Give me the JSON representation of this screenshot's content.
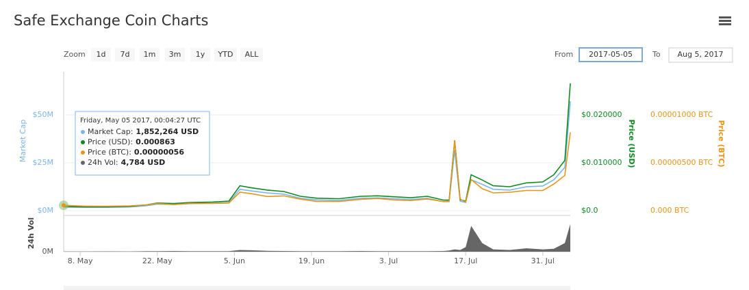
{
  "chart_data": {
    "type": "line",
    "title": "Safe Exchange Coin Charts",
    "range_selector": {
      "zoom_label": "Zoom",
      "buttons": [
        "1d",
        "7d",
        "1m",
        "3m",
        "1y",
        "YTD",
        "ALL"
      ],
      "from_label": "From",
      "from": "2017-05-05",
      "to_label": "To",
      "to": "Aug 5, 2017"
    },
    "tooltip": {
      "header": "Friday, May 05 2017, 00:04:27 UTC",
      "rows": [
        {
          "label": "Market Cap:",
          "value": "1,852,264 USD"
        },
        {
          "label": "Price (USD):",
          "value": "0.000863"
        },
        {
          "label": "Price (BTC):",
          "value": "0.00000056"
        },
        {
          "label": "24h Vol:",
          "value": "4,784 USD"
        }
      ]
    },
    "x": [
      "2017-05-05",
      "2017-05-09",
      "2017-05-13",
      "2017-05-17",
      "2017-05-20",
      "2017-05-22",
      "2017-05-25",
      "2017-05-28",
      "2017-06-01",
      "2017-06-04",
      "2017-06-06",
      "2017-06-08",
      "2017-06-11",
      "2017-06-14",
      "2017-06-17",
      "2017-06-20",
      "2017-06-24",
      "2017-06-28",
      "2017-07-01",
      "2017-07-04",
      "2017-07-07",
      "2017-07-10",
      "2017-07-13",
      "2017-07-14",
      "2017-07-15",
      "2017-07-16",
      "2017-07-17",
      "2017-07-18",
      "2017-07-20",
      "2017-07-22",
      "2017-07-25",
      "2017-07-28",
      "2017-07-31",
      "2017-08-02",
      "2017-08-04",
      "2017-08-05"
    ],
    "xlim": [
      "2017-05-05",
      "2017-08-05"
    ],
    "xticks": [
      {
        "value": "2017-05-08",
        "label": "8. May"
      },
      {
        "value": "2017-05-22",
        "label": "22. May"
      },
      {
        "value": "2017-06-05",
        "label": "5. Jun"
      },
      {
        "value": "2017-06-19",
        "label": "19. Jun"
      },
      {
        "value": "2017-07-03",
        "label": "3. Jul"
      },
      {
        "value": "2017-07-17",
        "label": "17. Jul"
      },
      {
        "value": "2017-07-31",
        "label": "31. Jul"
      }
    ],
    "series": [
      {
        "name": "Market Cap",
        "color": "#7cb5ec",
        "axis": "y",
        "values": [
          1852264,
          1720000,
          1720000,
          1935000,
          2580000,
          3440000,
          3225000,
          3655000,
          3870000,
          4300000,
          11180000,
          10320000,
          9245000,
          8600000,
          6450000,
          5590000,
          5375000,
          6450000,
          6665000,
          6235000,
          5805000,
          6450000,
          4730000,
          4730000,
          31605000,
          4945000,
          4300000,
          16125000,
          13760000,
          11180000,
          10750000,
          12470000,
          12900000,
          16125000,
          22575000,
          57190000
        ]
      },
      {
        "name": "Price (USD)",
        "color": "#0d8a1f",
        "axis": "y2",
        "values": [
          0.000863,
          0.0008,
          0.0008,
          0.0009,
          0.0012,
          0.0016,
          0.0015,
          0.0017,
          0.0018,
          0.002,
          0.0052,
          0.0048,
          0.0043,
          0.004,
          0.003,
          0.0026,
          0.0025,
          0.003,
          0.0031,
          0.0029,
          0.0027,
          0.003,
          0.0022,
          0.0022,
          0.0147,
          0.0023,
          0.002,
          0.0075,
          0.0064,
          0.0052,
          0.005,
          0.0058,
          0.006,
          0.0075,
          0.0105,
          0.0266
        ]
      },
      {
        "name": "Price (BTC)",
        "color": "#e69519",
        "axis": "y3",
        "values": [
          5.6e-07,
          4.7e-07,
          4.6e-07,
          5e-07,
          6e-07,
          7.6e-07,
          6.3e-07,
          7.7e-07,
          7.5e-07,
          8e-07,
          1.93e-06,
          1.78e-06,
          1.48e-06,
          1.54e-06,
          1.2e-06,
          9.6e-07,
          9.6e-07,
          1.18e-06,
          1.27e-06,
          1.12e-06,
          1.06e-06,
          1.22e-06,
          9.4e-07,
          9.8e-07,
          7.35e-06,
          1.21e-06,
          9.1e-07,
          3.26e-06,
          2.29e-06,
          1.86e-06,
          1.92e-06,
          2.11e-06,
          2.11e-06,
          2.78e-06,
          3.68e-06,
          8.18e-06
        ]
      },
      {
        "name": "24h Vol",
        "color": "#666666",
        "axis": "vol",
        "values": [
          4784,
          5000,
          6000,
          5000,
          8000,
          10000,
          12000,
          9000,
          8000,
          10000,
          30000,
          25000,
          15000,
          12000,
          10000,
          8000,
          9000,
          12000,
          10000,
          9000,
          8000,
          10000,
          12000,
          20000,
          40000,
          30000,
          80000,
          450000,
          150000,
          40000,
          30000,
          60000,
          40000,
          50000,
          150000,
          480000
        ]
      }
    ],
    "ylim": [
      0,
      72500000
    ],
    "yticks": [
      {
        "value": 0,
        "label": "$0M"
      },
      {
        "value": 25000000,
        "label": "$25M"
      },
      {
        "value": 50000000,
        "label": "$50M"
      }
    ],
    "y2lim": [
      0,
      0.029
    ],
    "y2ticks": [
      {
        "value": 0,
        "label": "$0.0"
      },
      {
        "value": 0.01,
        "label": "$0.010000"
      },
      {
        "value": 0.02,
        "label": "$0.020000"
      }
    ],
    "y3lim": [
      0,
      1.45e-05
    ],
    "y3ticks": [
      {
        "value": 0,
        "label": "0.000 BTC"
      },
      {
        "value": 5e-06,
        "label": "0.00000500 BTC"
      },
      {
        "value": 1e-05,
        "label": "0.00001000 BTC"
      }
    ],
    "vol_ylim": [
      0,
      500000
    ],
    "vol_yticks": [
      {
        "value": 0,
        "label": "0M"
      }
    ],
    "grid": true
  }
}
